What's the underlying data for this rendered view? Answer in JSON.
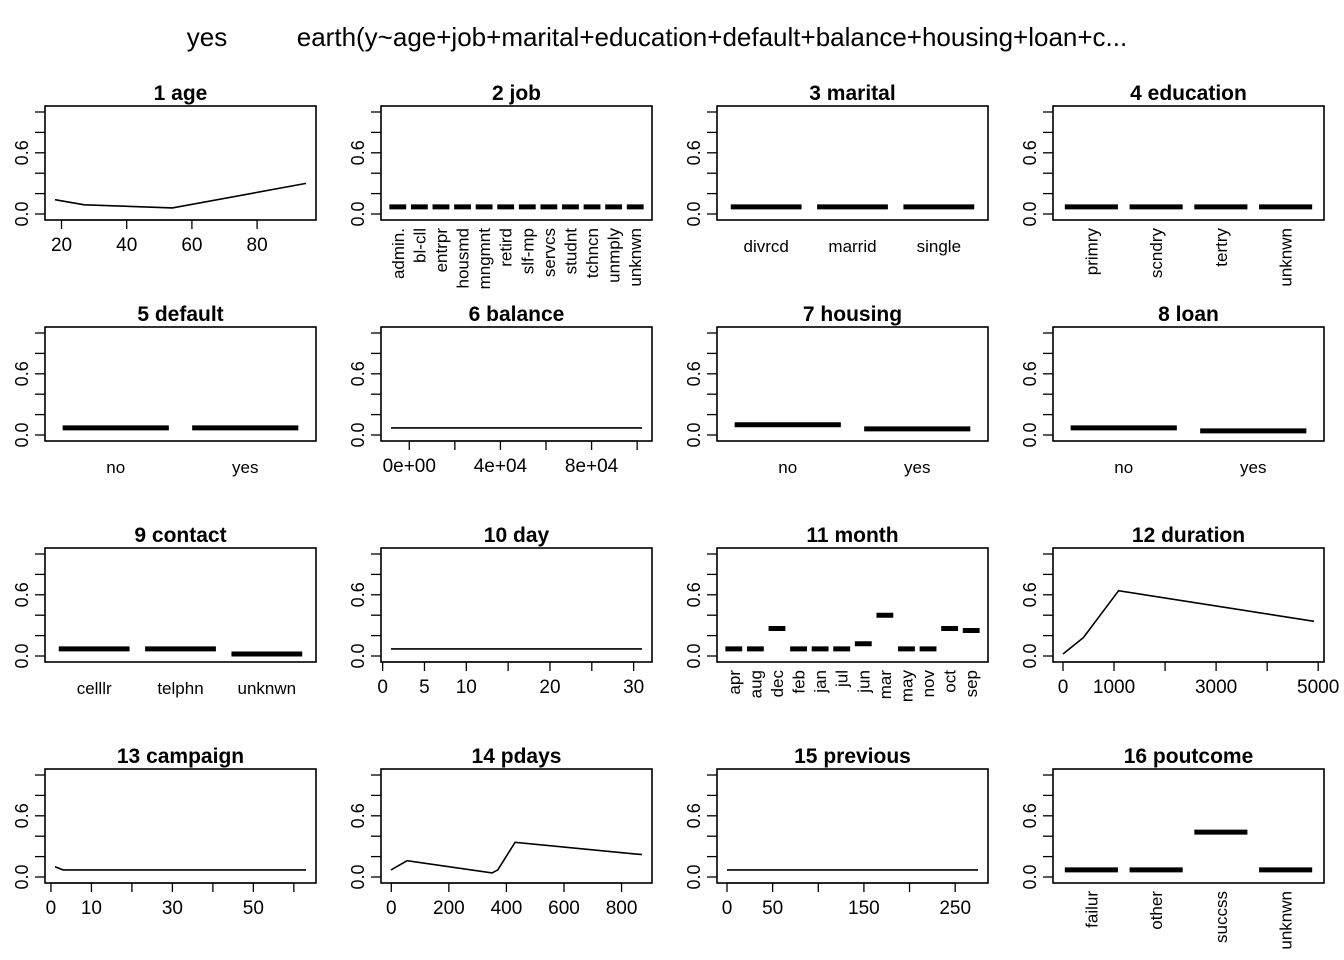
{
  "figure": {
    "response_label": "yes",
    "model_formula": "earth(y~age+job+marital+education+default+balance+housing+loan+c..."
  },
  "chart_data": [
    {
      "title": "1  age",
      "type": "line",
      "y_ticks": [
        "0.0",
        "0.6"
      ],
      "ylim": [
        0,
        1
      ],
      "xlim": [
        18,
        95
      ],
      "x_ticks": [
        {
          "v": 20,
          "label": "20"
        },
        {
          "v": 40,
          "label": "40"
        },
        {
          "v": 60,
          "label": "60"
        },
        {
          "v": 80,
          "label": "80"
        }
      ],
      "x": [
        18,
        27,
        54,
        95
      ],
      "y": [
        0.14,
        0.09,
        0.06,
        0.3
      ]
    },
    {
      "title": "2  job",
      "type": "factor",
      "y_ticks": [
        "0.0",
        "0.6"
      ],
      "ylim": [
        0,
        1
      ],
      "rotate_labels": true,
      "categories": [
        "admin.",
        "bl-cll",
        "entrpr",
        "housmd",
        "mngmnt",
        "retird",
        "slf-mp",
        "servcs",
        "studnt",
        "tchncn",
        "unmply",
        "unknwn"
      ],
      "values": [
        0.07,
        0.07,
        0.07,
        0.07,
        0.07,
        0.07,
        0.07,
        0.07,
        0.07,
        0.07,
        0.07,
        0.07
      ]
    },
    {
      "title": "3  marital",
      "type": "factor",
      "y_ticks": [
        "0.0",
        "0.6"
      ],
      "ylim": [
        0,
        1
      ],
      "rotate_labels": false,
      "categories": [
        "divrcd",
        "marrid",
        "single"
      ],
      "values": [
        0.07,
        0.07,
        0.07
      ]
    },
    {
      "title": "4  education",
      "type": "factor",
      "y_ticks": [
        "0.0",
        "0.6"
      ],
      "ylim": [
        0,
        1
      ],
      "rotate_labels": true,
      "categories": [
        "primry",
        "scndry",
        "tertry",
        "unknwn"
      ],
      "values": [
        0.07,
        0.07,
        0.07,
        0.07
      ]
    },
    {
      "title": "5  default",
      "type": "factor",
      "y_ticks": [
        "0.0",
        "0.6"
      ],
      "ylim": [
        0,
        1
      ],
      "rotate_labels": false,
      "categories": [
        "no",
        "yes"
      ],
      "values": [
        0.07,
        0.07
      ]
    },
    {
      "title": "6  balance",
      "type": "line",
      "y_ticks": [
        "0.0",
        "0.6"
      ],
      "ylim": [
        0,
        1
      ],
      "xlim": [
        -8019,
        102127
      ],
      "x_ticks": [
        {
          "v": 0,
          "label": "0e+00"
        },
        {
          "v": 20000,
          "label": ""
        },
        {
          "v": 40000,
          "label": "4e+04"
        },
        {
          "v": 60000,
          "label": ""
        },
        {
          "v": 80000,
          "label": "8e+04"
        },
        {
          "v": 100000,
          "label": ""
        }
      ],
      "x": [
        -8019,
        102127
      ],
      "y": [
        0.07,
        0.07
      ]
    },
    {
      "title": "7  housing",
      "type": "factor",
      "y_ticks": [
        "0.0",
        "0.6"
      ],
      "ylim": [
        0,
        1
      ],
      "rotate_labels": false,
      "categories": [
        "no",
        "yes"
      ],
      "values": [
        0.1,
        0.06
      ]
    },
    {
      "title": "8  loan",
      "type": "factor",
      "y_ticks": [
        "0.0",
        "0.6"
      ],
      "ylim": [
        0,
        1
      ],
      "rotate_labels": false,
      "categories": [
        "no",
        "yes"
      ],
      "values": [
        0.07,
        0.04
      ]
    },
    {
      "title": "9  contact",
      "type": "factor",
      "y_ticks": [
        "0.0",
        "0.6"
      ],
      "ylim": [
        0,
        1
      ],
      "rotate_labels": false,
      "categories": [
        "celllr",
        "telphn",
        "unknwn"
      ],
      "values": [
        0.07,
        0.07,
        0.02
      ]
    },
    {
      "title": "10  day",
      "type": "line",
      "y_ticks": [
        "0.0",
        "0.6"
      ],
      "ylim": [
        0,
        1
      ],
      "xlim": [
        1,
        31
      ],
      "x_ticks": [
        {
          "v": 0,
          "label": "0"
        },
        {
          "v": 5,
          "label": "5"
        },
        {
          "v": 10,
          "label": "10"
        },
        {
          "v": 15,
          "label": ""
        },
        {
          "v": 20,
          "label": "20"
        },
        {
          "v": 25,
          "label": ""
        },
        {
          "v": 30,
          "label": "30"
        }
      ],
      "x": [
        1,
        31
      ],
      "y": [
        0.07,
        0.07
      ]
    },
    {
      "title": "11  month",
      "type": "factor",
      "y_ticks": [
        "0.0",
        "0.6"
      ],
      "ylim": [
        0,
        1
      ],
      "rotate_labels": true,
      "categories": [
        "apr",
        "aug",
        "dec",
        "feb",
        "jan",
        "jul",
        "jun",
        "mar",
        "may",
        "nov",
        "oct",
        "sep"
      ],
      "values": [
        0.07,
        0.07,
        0.27,
        0.07,
        0.07,
        0.07,
        0.12,
        0.4,
        0.07,
        0.07,
        0.27,
        0.25
      ]
    },
    {
      "title": "12  duration",
      "type": "line",
      "y_ticks": [
        "0.0",
        "0.6"
      ],
      "ylim": [
        0,
        1
      ],
      "xlim": [
        0,
        4918
      ],
      "x_ticks": [
        {
          "v": 0,
          "label": "0"
        },
        {
          "v": 1000,
          "label": "1000"
        },
        {
          "v": 2000,
          "label": ""
        },
        {
          "v": 3000,
          "label": "3000"
        },
        {
          "v": 4000,
          "label": ""
        },
        {
          "v": 5000,
          "label": "5000"
        }
      ],
      "x": [
        0,
        400,
        1090,
        4918
      ],
      "y": [
        0.02,
        0.18,
        0.64,
        0.34
      ]
    },
    {
      "title": "13  campaign",
      "type": "line",
      "y_ticks": [
        "0.0",
        "0.6"
      ],
      "ylim": [
        0,
        1
      ],
      "xlim": [
        1,
        63
      ],
      "x_ticks": [
        {
          "v": 0,
          "label": "0"
        },
        {
          "v": 10,
          "label": "10"
        },
        {
          "v": 20,
          "label": ""
        },
        {
          "v": 30,
          "label": "30"
        },
        {
          "v": 40,
          "label": ""
        },
        {
          "v": 50,
          "label": "50"
        },
        {
          "v": 60,
          "label": ""
        }
      ],
      "x": [
        1,
        3,
        63
      ],
      "y": [
        0.1,
        0.07,
        0.07
      ]
    },
    {
      "title": "14  pdays",
      "type": "line",
      "y_ticks": [
        "0.0",
        "0.6"
      ],
      "ylim": [
        0,
        1
      ],
      "xlim": [
        -1,
        871
      ],
      "x_ticks": [
        {
          "v": 0,
          "label": "0"
        },
        {
          "v": 200,
          "label": "200"
        },
        {
          "v": 400,
          "label": "400"
        },
        {
          "v": 600,
          "label": "600"
        },
        {
          "v": 800,
          "label": "800"
        }
      ],
      "x": [
        -1,
        55,
        350,
        370,
        430,
        871
      ],
      "y": [
        0.07,
        0.16,
        0.04,
        0.07,
        0.34,
        0.22
      ]
    },
    {
      "title": "15  previous",
      "type": "line",
      "y_ticks": [
        "0.0",
        "0.6"
      ],
      "ylim": [
        0,
        1
      ],
      "xlim": [
        0,
        275
      ],
      "x_ticks": [
        {
          "v": 0,
          "label": "0"
        },
        {
          "v": 50,
          "label": "50"
        },
        {
          "v": 100,
          "label": ""
        },
        {
          "v": 150,
          "label": "150"
        },
        {
          "v": 200,
          "label": ""
        },
        {
          "v": 250,
          "label": "250"
        }
      ],
      "x": [
        0,
        275
      ],
      "y": [
        0.07,
        0.07
      ]
    },
    {
      "title": "16  poutcome",
      "type": "factor",
      "y_ticks": [
        "0.0",
        "0.6"
      ],
      "ylim": [
        0,
        1
      ],
      "rotate_labels": true,
      "categories": [
        "failur",
        "other",
        "succss",
        "unknwn"
      ],
      "values": [
        0.07,
        0.07,
        0.44,
        0.07
      ]
    }
  ]
}
